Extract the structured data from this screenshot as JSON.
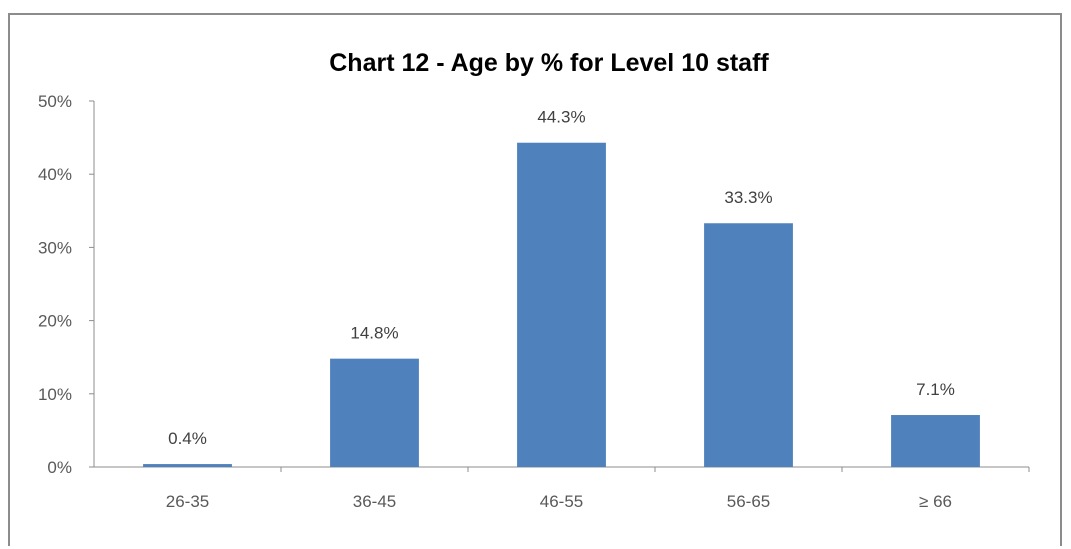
{
  "chart_data": {
    "type": "bar",
    "title": "Chart 12 - Age by % for Level 10 staff",
    "xlabel": "",
    "ylabel": "",
    "categories": [
      "26-35",
      "36-45",
      "46-55",
      "56-65",
      "≥ 66"
    ],
    "values": [
      0.4,
      14.8,
      44.3,
      33.3,
      7.1
    ],
    "data_labels": [
      "0.4%",
      "14.8%",
      "44.3%",
      "33.3%",
      "7.1%"
    ],
    "ylim": [
      0,
      50
    ],
    "yticks": [
      0,
      10,
      20,
      30,
      40,
      50
    ],
    "ytick_labels": [
      "0%",
      "10%",
      "20%",
      "30%",
      "40%",
      "50%"
    ],
    "grid": false,
    "legend": "none",
    "bar_color": "#4f81bd"
  }
}
